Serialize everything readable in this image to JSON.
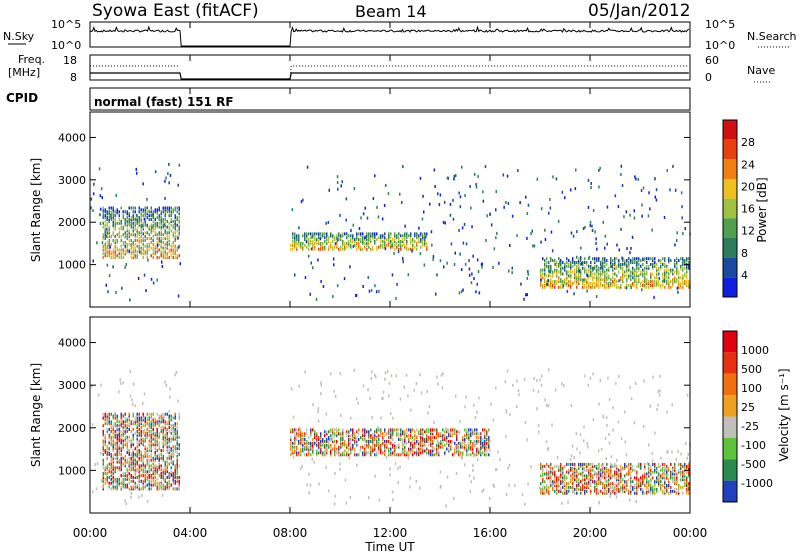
{
  "header": {
    "station": "Syowa East (fitACF)",
    "beam": "Beam 14",
    "date": "05/Jan/2012"
  },
  "top_panels": {
    "nsky_label": "N.Sky",
    "nsky_ticks": [
      "10^5",
      "10^0"
    ],
    "nsearch_label": "N.Search",
    "nsearch_ticks": [
      "10^5",
      "10^0"
    ],
    "freq_label_1": "Freq.",
    "freq_label_2": "[MHz]",
    "freq_ticks": [
      "18",
      "8"
    ],
    "nave_label": "Nave",
    "nave_ticks": [
      "60",
      "0"
    ],
    "cpid_label": "CPID",
    "cpid_text": "normal (fast) 151 RF"
  },
  "colors": {
    "power": [
      "#1020e0",
      "#1a4aa0",
      "#2e7d5a",
      "#50a050",
      "#a0c040",
      "#f0c020",
      "#f08010",
      "#e84010",
      "#d01010"
    ],
    "velocity": [
      "#2040c0",
      "#2d8a4e",
      "#5ec23a",
      "#c0c0b8",
      "#f0a020",
      "#f07010",
      "#e83010",
      "#e00010"
    ]
  },
  "chart_data": [
    {
      "type": "heatmap",
      "title": "Power",
      "ylabel": "Slant Range [km]",
      "xlabel": "Time UT",
      "x_ticks": [
        "00:00",
        "04:00",
        "08:00",
        "12:00",
        "16:00",
        "20:00",
        "00:00"
      ],
      "xlim_hours": [
        0,
        24
      ],
      "ylim_km": [
        180,
        3600
      ],
      "y_ticks": [
        1000,
        2000,
        3000,
        4000
      ],
      "colorbar_label": "Power [dB]",
      "colorbar_ticks": [
        "4",
        "8",
        "12",
        "16",
        "20",
        "24",
        "28"
      ],
      "data_gaps_hours": [
        [
          3.6,
          8.0
        ]
      ],
      "approx_features": [
        {
          "time_hours": [
            0.5,
            3.6
          ],
          "range_km": [
            1200,
            2400
          ],
          "power_db": [
            8,
            16
          ]
        },
        {
          "time_hours": [
            8.0,
            13.5
          ],
          "range_km": [
            1400,
            1800
          ],
          "power_db": [
            8,
            20
          ]
        },
        {
          "time_hours": [
            18.0,
            24.0
          ],
          "range_km": [
            500,
            1200
          ],
          "power_db": [
            20,
            28
          ]
        }
      ]
    },
    {
      "type": "heatmap",
      "title": "Velocity",
      "ylabel": "Slant Range [km]",
      "xlabel": "Time UT",
      "x_ticks": [
        "00:00",
        "04:00",
        "08:00",
        "12:00",
        "16:00",
        "20:00",
        "00:00"
      ],
      "xlim_hours": [
        0,
        24
      ],
      "ylim_km": [
        180,
        3600
      ],
      "y_ticks": [
        1000,
        2000,
        3000,
        4000
      ],
      "colorbar_label": "Velocity [m s⁻¹]",
      "colorbar_ticks": [
        "1000",
        "500",
        "100",
        "25",
        "-25",
        "-100",
        "-500",
        "-1000"
      ],
      "data_gaps_hours": [
        [
          3.6,
          8.0
        ]
      ],
      "approx_features": [
        {
          "time_hours": [
            0.5,
            3.6
          ],
          "range_km": [
            600,
            2400
          ],
          "velocity_ms": [
            -500,
            25
          ]
        },
        {
          "time_hours": [
            8.0,
            16.0
          ],
          "range_km": [
            1400,
            2000
          ],
          "velocity_ms": [
            -25,
            25
          ]
        },
        {
          "time_hours": [
            18.0,
            24.0
          ],
          "range_km": [
            500,
            1200
          ],
          "velocity_ms": [
            100,
            1000
          ]
        }
      ]
    }
  ]
}
